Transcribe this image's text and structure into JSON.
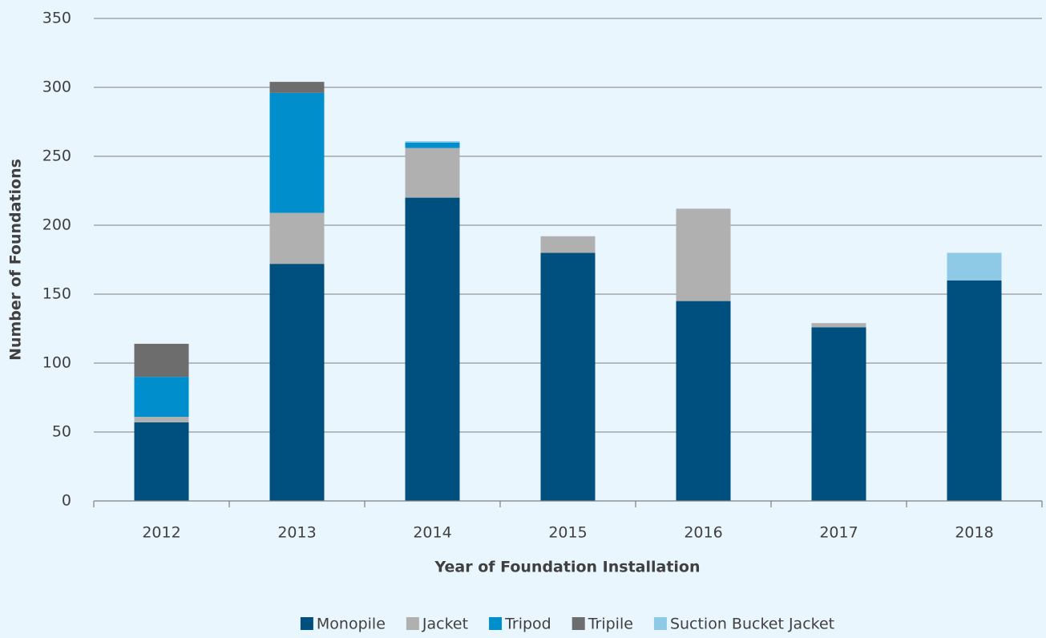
{
  "chart_data": {
    "type": "stacked_bar",
    "x_label": "Year of  Foundation Installation",
    "y_label": "Number of Foundations",
    "categories": [
      "2012",
      "2013",
      "2014",
      "2015",
      "2016",
      "2017",
      "2018"
    ],
    "series": [
      {
        "name": "Monopile",
        "color": "#00507f",
        "values": [
          57,
          172,
          220,
          180,
          145,
          126,
          160
        ]
      },
      {
        "name": "Jacket",
        "color": "#b0b0b0",
        "values": [
          4,
          37,
          36,
          12,
          67,
          3,
          0
        ]
      },
      {
        "name": "Tripod",
        "color": "#008fcc",
        "values": [
          29,
          87,
          4,
          0,
          0,
          0,
          0
        ]
      },
      {
        "name": "Tripile",
        "color": "#6d6d6d",
        "values": [
          24,
          8,
          0,
          0,
          0,
          0,
          0
        ]
      },
      {
        "name": "Suction Bucket Jacket",
        "color": "#8ecae6",
        "values": [
          0,
          0,
          1,
          0,
          0,
          0,
          20
        ]
      }
    ],
    "ylim": [
      0,
      350
    ],
    "yticks": [
      0,
      50,
      100,
      150,
      200,
      250,
      300,
      350
    ],
    "grid": true
  }
}
